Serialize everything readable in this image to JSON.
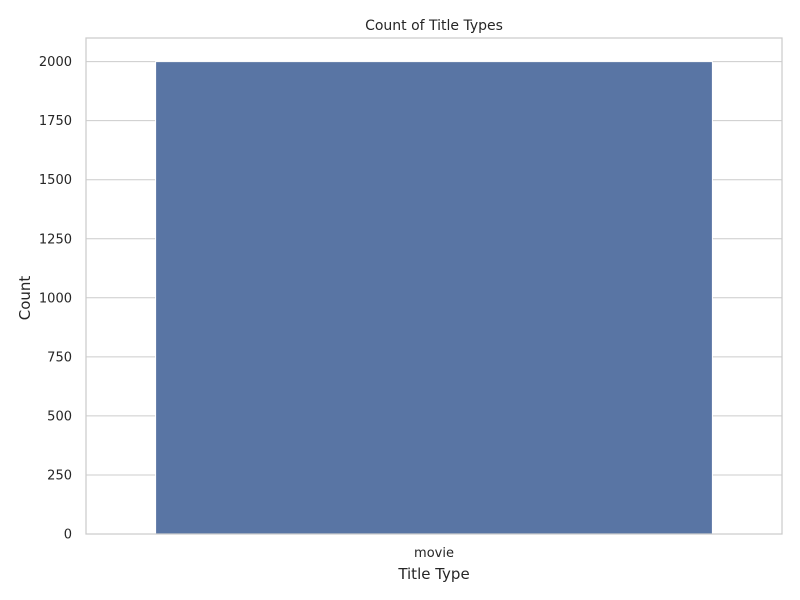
{
  "chart_data": {
    "type": "bar",
    "title": "Count of Title Types",
    "xlabel": "Title Type",
    "ylabel": "Count",
    "categories": [
      "movie"
    ],
    "values": [
      2000
    ],
    "ylim": [
      0,
      2100
    ],
    "yticks": [
      0,
      250,
      500,
      750,
      1000,
      1250,
      1500,
      1750,
      2000
    ],
    "grid": true,
    "bar_color": "#5975a4"
  }
}
